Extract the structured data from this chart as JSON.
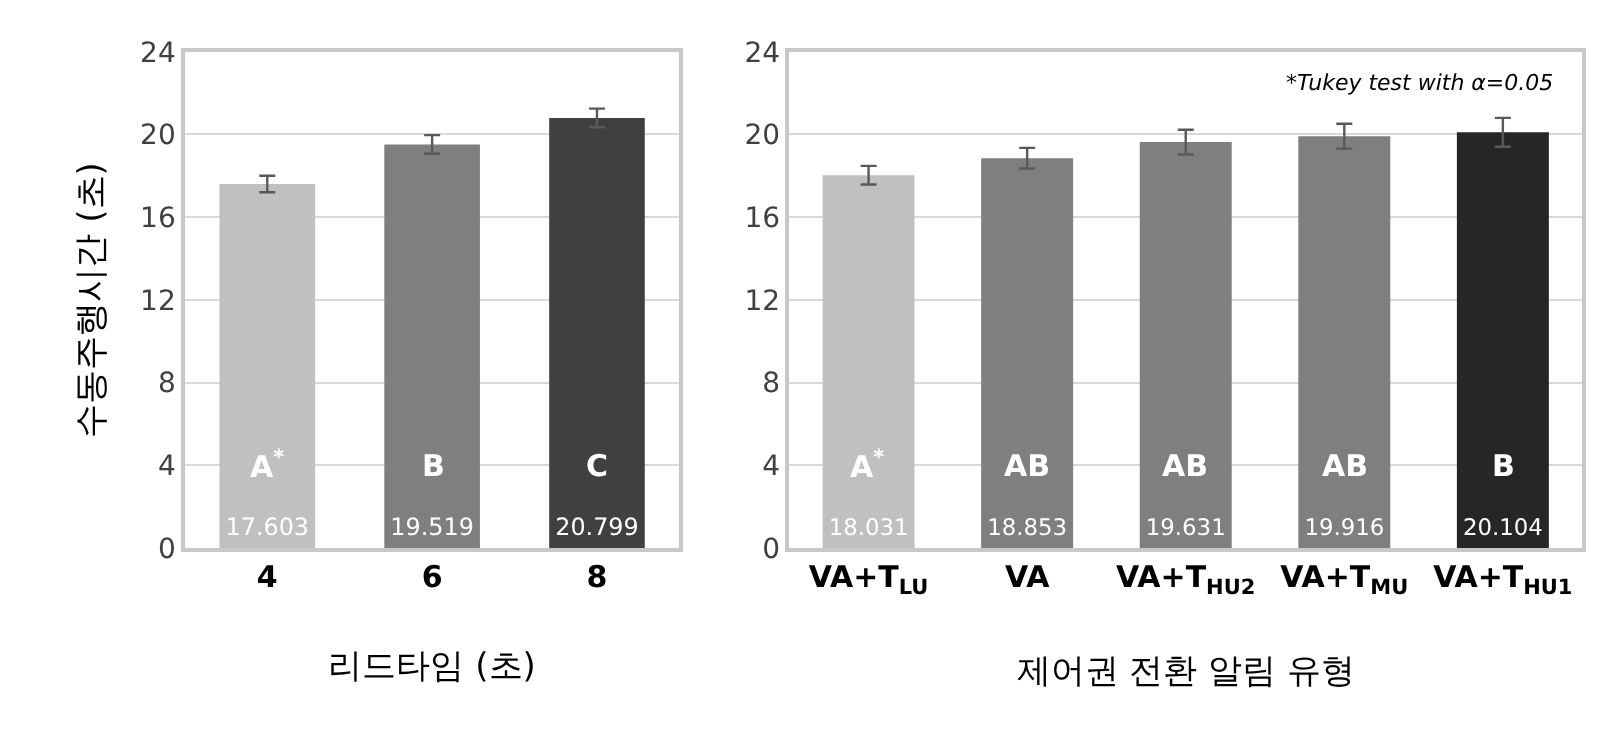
{
  "chart_data": [
    {
      "type": "bar",
      "ylabel": "수동주행시간 (초)",
      "xlabel": "리드타임 (초)",
      "categories": [
        "4",
        "6",
        "8"
      ],
      "values": [
        17.603,
        19.519,
        20.799
      ],
      "colors": [
        "#c0c0c0",
        "#7f7f7f",
        "#404040"
      ],
      "errors": [
        0.4,
        0.45,
        0.45
      ],
      "ylim": [
        0,
        24
      ],
      "yticks": [
        0,
        4,
        8,
        12,
        16,
        20,
        24
      ],
      "grid": "y",
      "data_labels": true,
      "annotations": [
        "A$^{*}$",
        "B",
        "C"
      ]
    },
    {
      "type": "bar",
      "xlabel": "제어권 전환 알림 유형",
      "categories": [
        "VA+T$_{LU}$",
        "VA",
        "VA+T$_{HU2}$",
        "VA+T$_{MU}$",
        "VA+T$_{HU1}$"
      ],
      "values": [
        18.031,
        18.853,
        19.631,
        19.916,
        20.104
      ],
      "colors": [
        "#c0c0c0",
        "#7f7f7f",
        "#7f7f7f",
        "#7f7f7f",
        "#262626"
      ],
      "errors": [
        0.45,
        0.5,
        0.6,
        0.6,
        0.7
      ],
      "ylim": [
        0,
        24
      ],
      "yticks": [
        0,
        4,
        8,
        12,
        16,
        20,
        24
      ],
      "grid": "y",
      "data_labels": true,
      "annotations": [
        "A$^{*}$",
        "AB",
        "AB",
        "AB",
        "B",
        "*Tukey test with α=0.05"
      ]
    }
  ]
}
